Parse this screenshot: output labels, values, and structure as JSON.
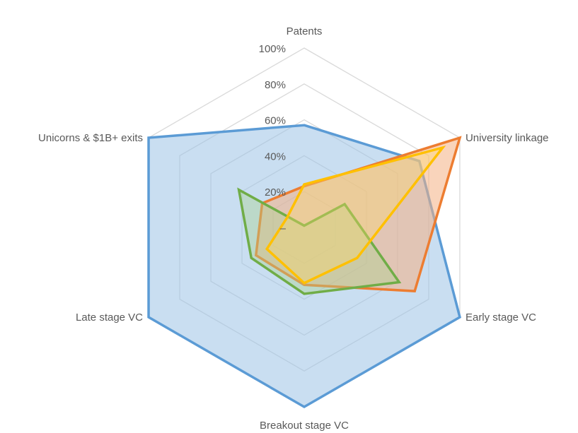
{
  "chart_data": {
    "type": "radar",
    "title": "",
    "axes": [
      "Patents",
      "University linkage",
      "Early stage VC",
      "Breakout stage VC",
      "Late stage VC",
      "Unicorns & $1B+ exits"
    ],
    "rlim": [
      0,
      100
    ],
    "ticks": [
      "–",
      "20%",
      "40%",
      "60%",
      "80%",
      "100%"
    ],
    "grid": true,
    "legend": "none",
    "series": [
      {
        "color": "#5b9bd5",
        "fill": "rgba(157,195,230,0.55)",
        "values": [
          57,
          74,
          100,
          100,
          100,
          100
        ]
      },
      {
        "color": "#ed7d31",
        "fill": "rgba(244,177,131,0.55)",
        "values": [
          23,
          100,
          71,
          32,
          31,
          27
        ]
      },
      {
        "color": "#70ad47",
        "fill": "rgba(169,209,142,0.40)",
        "values": [
          1,
          26,
          61,
          37,
          34,
          42
        ]
      },
      {
        "color": "#ffc000",
        "fill": "rgba(255,217,102,0.35)",
        "values": [
          24,
          89,
          34,
          31,
          24,
          11
        ]
      }
    ]
  }
}
